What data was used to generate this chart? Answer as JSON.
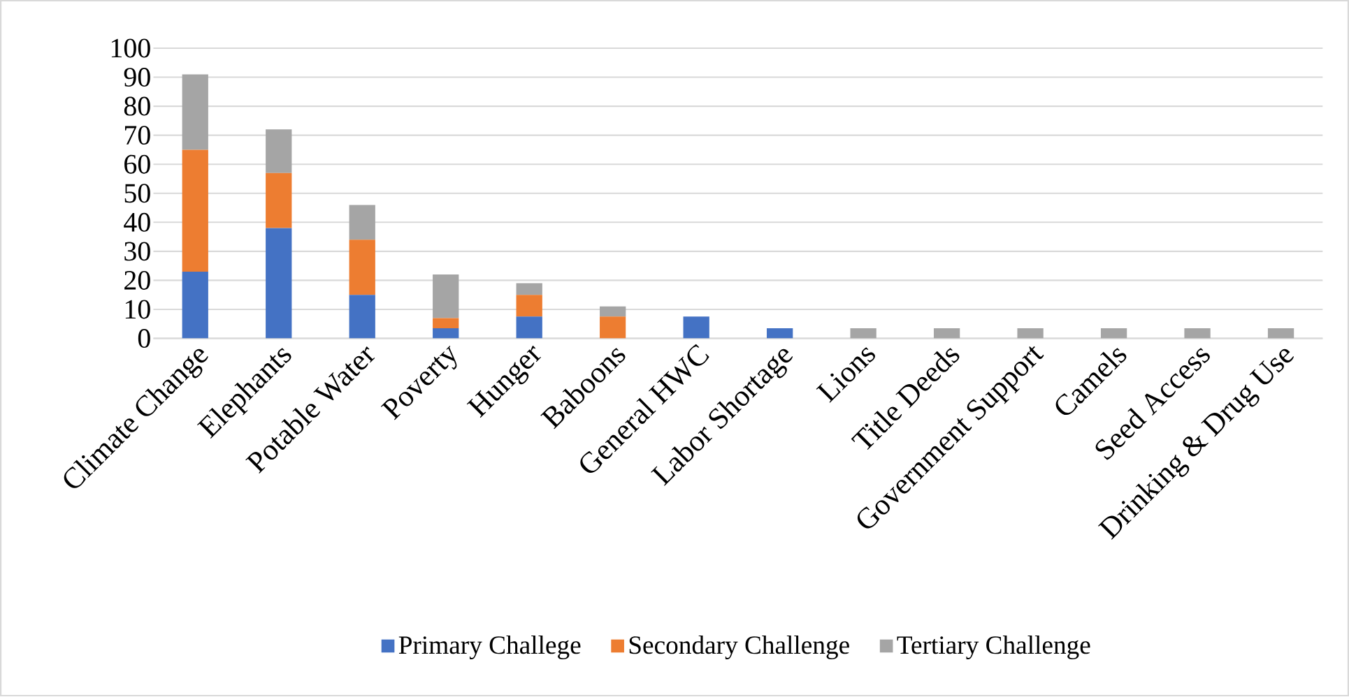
{
  "chart_data": {
    "type": "bar",
    "stacked": true,
    "categories": [
      "Climate Change",
      "Elephants",
      "Potable Water",
      "Poverty",
      "Hunger",
      "Baboons",
      "General HWC",
      "Labor Shortage",
      "Lions",
      "Title Deeds",
      "Government Support",
      "Camels",
      "Seed Access",
      "Drinking & Drug Use"
    ],
    "series": [
      {
        "name": "Primary Challege",
        "color": "#4472c4",
        "values": [
          23,
          38,
          15,
          3.5,
          7.5,
          null,
          7.5,
          3.5,
          null,
          null,
          null,
          null,
          null,
          null
        ]
      },
      {
        "name": "Secondary Challenge",
        "color": "#ed7d31",
        "values": [
          42,
          19,
          19,
          3.5,
          7.5,
          7.5,
          null,
          null,
          null,
          null,
          null,
          null,
          null,
          null
        ]
      },
      {
        "name": "Tertiary Challenge",
        "color": "#a5a5a5",
        "values": [
          26,
          15,
          12,
          15,
          4,
          3.5,
          null,
          null,
          3.5,
          3.5,
          3.5,
          3.5,
          3.5,
          3.5
        ]
      }
    ],
    "ylim": [
      0,
      100
    ],
    "yticks": [
      0,
      10,
      20,
      30,
      40,
      50,
      60,
      70,
      80,
      90,
      100
    ],
    "grid": "y",
    "legend": "bottom"
  }
}
